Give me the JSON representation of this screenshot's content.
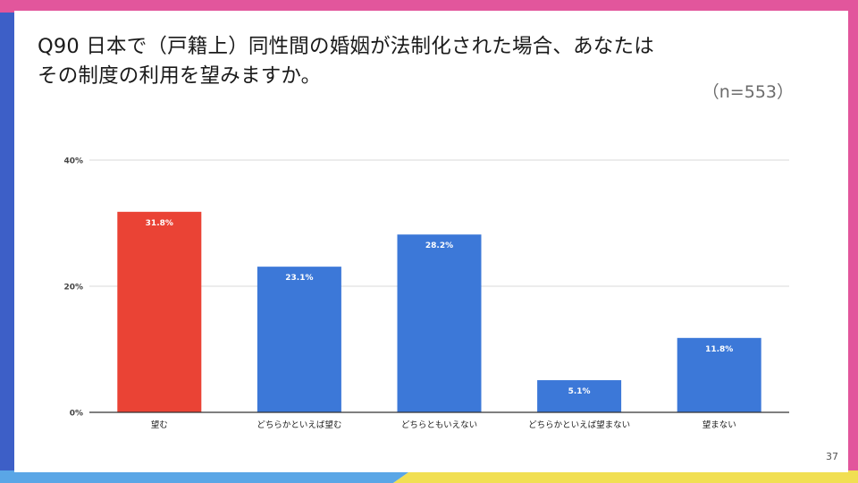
{
  "slide": {
    "title_lines": [
      "Q90 日本で（戸籍上）同性間の婚姻が法制化された場合、あなたは",
      "その制度の利用を望みますか。"
    ],
    "sample_size": "（n=553）",
    "page_number": "37"
  },
  "colors": {
    "bar_highlight": "#ea4335",
    "bar_default": "#3c78d8",
    "grid": "#d9d9d9",
    "axis": "#333333",
    "frame_blue": "#3d5fc7",
    "frame_pink": "#e2569c",
    "frame_yellow": "#f1df52",
    "frame_lightblue": "#5aa6e6"
  },
  "chart_data": {
    "type": "bar",
    "categories": [
      "望む",
      "どちらかといえば望む",
      "どちらともいえない",
      "どちらかといえば望まない",
      "望まない"
    ],
    "values": [
      31.8,
      23.1,
      28.2,
      5.1,
      11.8
    ],
    "data_labels": [
      "31.8%",
      "23.1%",
      "28.2%",
      "5.1%",
      "11.8%"
    ],
    "highlight_index": 0,
    "ylim": [
      0,
      40
    ],
    "yticks": [
      0,
      20,
      40
    ],
    "ytick_labels": [
      "0%",
      "20%",
      "40%"
    ],
    "grid": true,
    "legend": "none"
  }
}
